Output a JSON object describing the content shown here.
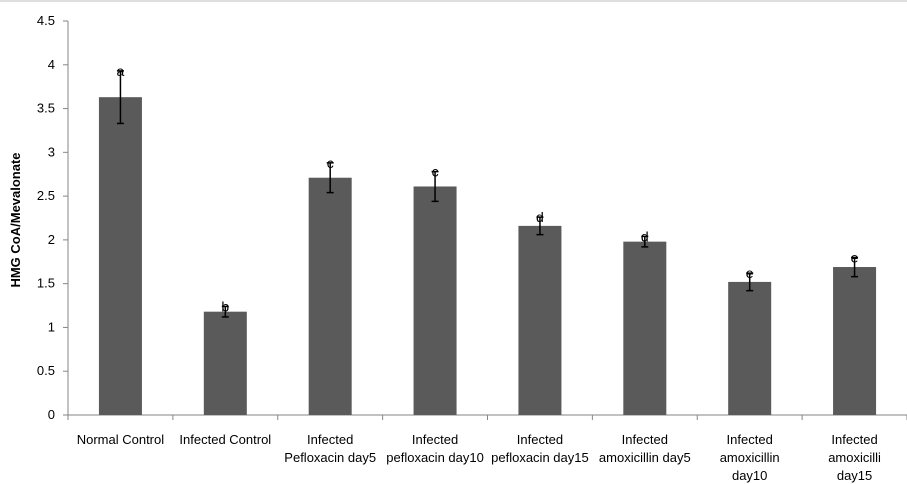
{
  "chart_data": {
    "type": "bar",
    "ylabel": "HMG CoA/Mevalonate",
    "ylim": [
      0,
      4.5
    ],
    "yticks": [
      "0",
      "0.5",
      "1",
      "1.5",
      "2",
      "2.5",
      "3",
      "3.5",
      "4",
      "4.5"
    ],
    "categories": [
      [
        "Normal Control"
      ],
      [
        "Infected Control"
      ],
      [
        "Infected",
        "Pefloxacin day5"
      ],
      [
        "Infected",
        "pefloxacin day10"
      ],
      [
        "Infected",
        "pefloxacin day15"
      ],
      [
        "Infected",
        "amoxicillin day5"
      ],
      [
        "Infected",
        "amoxicillin",
        "day10"
      ],
      [
        "Infected",
        "amoxicilli",
        "day15"
      ]
    ],
    "values": [
      3.63,
      1.18,
      2.71,
      2.61,
      2.16,
      1.98,
      1.52,
      1.69
    ],
    "errors": [
      0.3,
      0.06,
      0.17,
      0.17,
      0.1,
      0.06,
      0.1,
      0.11
    ],
    "significance_letters": [
      "a",
      "b",
      "c",
      "c",
      "d",
      "d",
      "e",
      "e"
    ],
    "bar_color": "#5a5a5a",
    "grid": false,
    "legend": "none"
  }
}
